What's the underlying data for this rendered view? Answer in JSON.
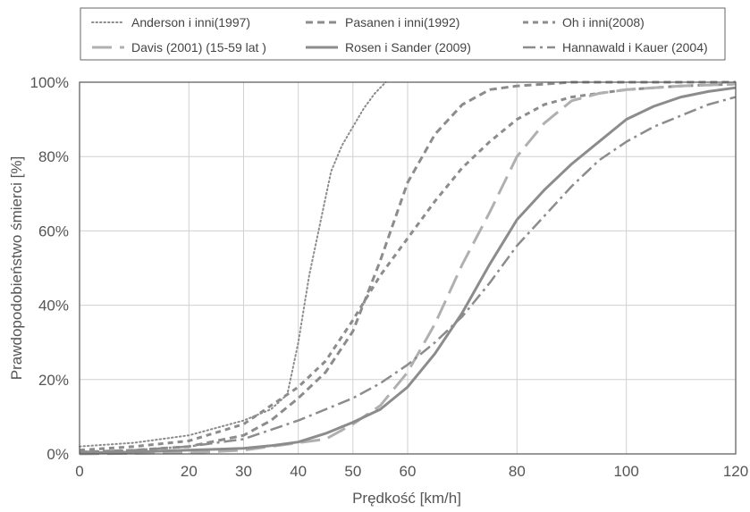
{
  "chart_data": {
    "type": "line",
    "xlabel": "Prędkość [km/h]",
    "ylabel": "Prawdopodobieństwo śmierci [%]",
    "xlim": [
      0,
      120
    ],
    "ylim": [
      0,
      100
    ],
    "x_ticks": [
      0,
      20,
      30,
      40,
      50,
      60,
      80,
      100,
      120
    ],
    "x_tick_labels": [
      "0",
      "20",
      "30",
      "40",
      "50",
      "60",
      "80",
      "100",
      "120"
    ],
    "y_ticks": [
      0,
      20,
      40,
      60,
      80,
      100
    ],
    "y_tick_labels": [
      "0%",
      "20%",
      "40%",
      "60%",
      "80%",
      "100%"
    ],
    "grid": true,
    "legend_position": "top",
    "series": [
      {
        "name": "Anderson i inni(1997)",
        "style": "dotted",
        "color": "#8c8c8c",
        "points": [
          [
            0,
            2
          ],
          [
            10,
            3
          ],
          [
            20,
            5
          ],
          [
            30,
            9
          ],
          [
            35,
            12
          ],
          [
            38,
            16
          ],
          [
            40,
            30
          ],
          [
            42,
            48
          ],
          [
            44,
            62
          ],
          [
            46,
            76
          ],
          [
            48,
            83
          ],
          [
            50,
            88
          ],
          [
            52,
            93
          ],
          [
            54,
            97
          ],
          [
            56,
            100
          ]
        ]
      },
      {
        "name": "Pasanen i inni(1992)",
        "style": "short-dash",
        "color": "#8c8c8c",
        "points": [
          [
            0,
            0.5
          ],
          [
            10,
            1
          ],
          [
            20,
            2
          ],
          [
            30,
            5
          ],
          [
            35,
            9
          ],
          [
            40,
            15
          ],
          [
            45,
            22
          ],
          [
            50,
            33
          ],
          [
            55,
            52
          ],
          [
            60,
            73
          ],
          [
            65,
            86
          ],
          [
            70,
            94
          ],
          [
            75,
            98
          ],
          [
            80,
            99
          ],
          [
            90,
            100
          ],
          [
            120,
            100
          ]
        ]
      },
      {
        "name": "Oh i inni(2008)",
        "style": "medium-dash",
        "color": "#8c8c8c",
        "points": [
          [
            0,
            1
          ],
          [
            10,
            2
          ],
          [
            20,
            3.5
          ],
          [
            30,
            8
          ],
          [
            40,
            18
          ],
          [
            45,
            25
          ],
          [
            50,
            36
          ],
          [
            55,
            48
          ],
          [
            60,
            58
          ],
          [
            65,
            68
          ],
          [
            70,
            77
          ],
          [
            75,
            84
          ],
          [
            80,
            90
          ],
          [
            85,
            94
          ],
          [
            90,
            96
          ],
          [
            100,
            98
          ],
          [
            110,
            99
          ],
          [
            120,
            99.5
          ]
        ]
      },
      {
        "name": "Davis (2001) (15-59  lat )",
        "style": "long-dash",
        "color": "#b0b0b0",
        "points": [
          [
            0,
            0
          ],
          [
            20,
            0.3
          ],
          [
            30,
            1
          ],
          [
            40,
            3
          ],
          [
            45,
            4
          ],
          [
            50,
            8
          ],
          [
            55,
            13
          ],
          [
            60,
            22
          ],
          [
            65,
            35
          ],
          [
            70,
            51
          ],
          [
            75,
            65
          ],
          [
            80,
            80
          ],
          [
            85,
            89
          ],
          [
            90,
            95
          ],
          [
            95,
            97
          ],
          [
            100,
            98
          ],
          [
            110,
            99
          ],
          [
            120,
            99.5
          ]
        ]
      },
      {
        "name": "Rosen i Sander (2009)",
        "style": "solid",
        "color": "#8c8c8c",
        "points": [
          [
            0,
            0.3
          ],
          [
            10,
            0.5
          ],
          [
            20,
            1
          ],
          [
            30,
            1.5
          ],
          [
            35,
            2.2
          ],
          [
            40,
            3.2
          ],
          [
            45,
            5.5
          ],
          [
            50,
            8.5
          ],
          [
            55,
            12
          ],
          [
            60,
            18
          ],
          [
            65,
            27
          ],
          [
            70,
            38
          ],
          [
            75,
            51
          ],
          [
            80,
            63
          ],
          [
            85,
            71
          ],
          [
            90,
            78
          ],
          [
            95,
            84
          ],
          [
            100,
            90
          ],
          [
            105,
            93.5
          ],
          [
            110,
            96
          ],
          [
            115,
            97.5
          ],
          [
            120,
            98.5
          ]
        ]
      },
      {
        "name": "Hannawald i Kauer (2004)",
        "style": "dash-dot",
        "color": "#8c8c8c",
        "points": [
          [
            0,
            0.5
          ],
          [
            10,
            1
          ],
          [
            20,
            2
          ],
          [
            30,
            4
          ],
          [
            40,
            9
          ],
          [
            45,
            12
          ],
          [
            50,
            15
          ],
          [
            55,
            19
          ],
          [
            60,
            24
          ],
          [
            65,
            30
          ],
          [
            70,
            37
          ],
          [
            75,
            46
          ],
          [
            80,
            56
          ],
          [
            85,
            64
          ],
          [
            90,
            72
          ],
          [
            95,
            79
          ],
          [
            100,
            84
          ],
          [
            105,
            88
          ],
          [
            110,
            91
          ],
          [
            115,
            94
          ],
          [
            120,
            96
          ]
        ]
      }
    ]
  }
}
